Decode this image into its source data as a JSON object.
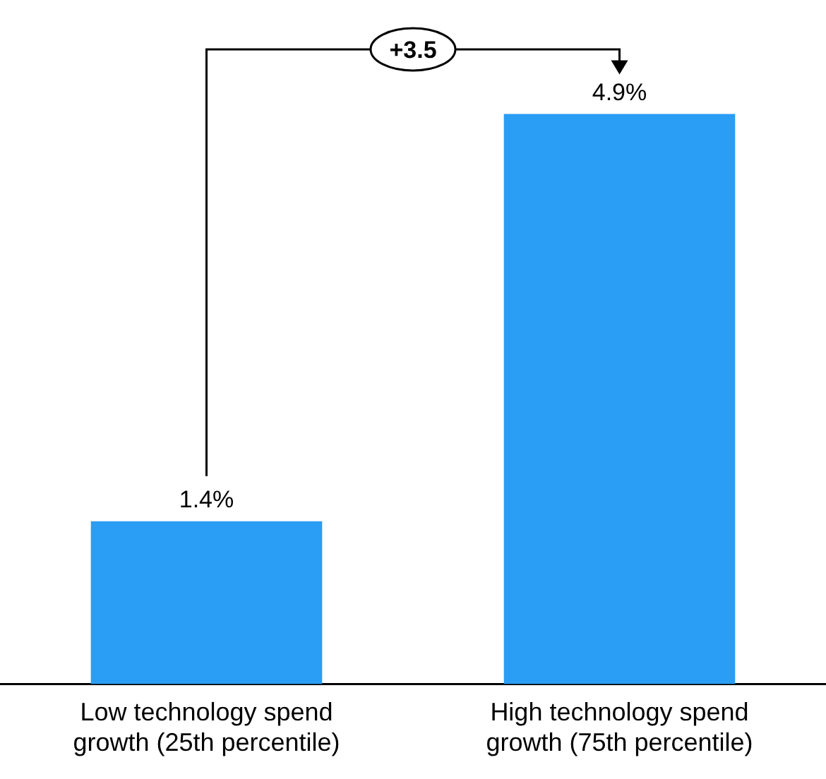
{
  "chart_data": {
    "type": "bar",
    "categories": [
      "Low technology spend growth (25th percentile)",
      "High technology spend growth (75th percentile)"
    ],
    "values": [
      1.4,
      4.9
    ],
    "value_labels": [
      "1.4%",
      "4.9%"
    ],
    "color": "#2a9df4",
    "tick_labels": "x",
    "annotations": [
      "+3.5"
    ]
  }
}
